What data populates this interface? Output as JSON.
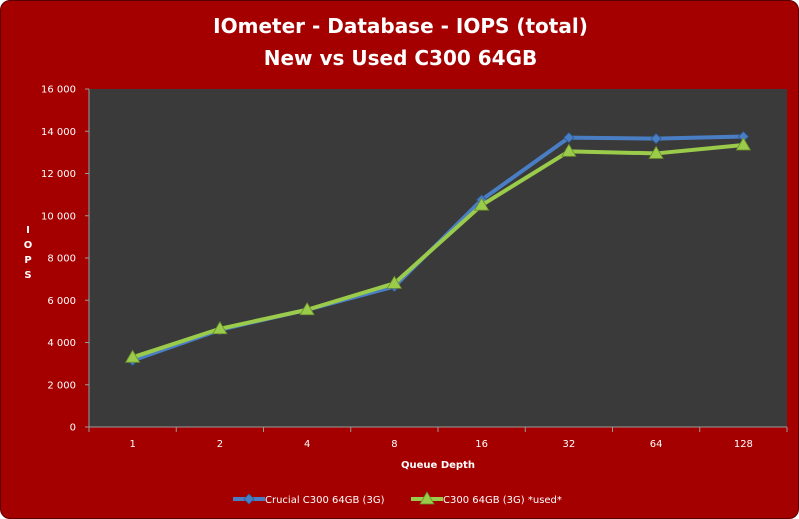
{
  "chart_data": {
    "type": "line",
    "title": "IOmeter - Database - IOPS (total)",
    "subtitle": "New vs Used C300 64GB",
    "xlabel": "Queue Depth",
    "ylabel": "I O P S",
    "categories": [
      "1",
      "2",
      "4",
      "8",
      "16",
      "32",
      "64",
      "128"
    ],
    "ylim": [
      0,
      16000
    ],
    "yticks": [
      0,
      2000,
      4000,
      6000,
      8000,
      10000,
      12000,
      14000,
      16000
    ],
    "ytick_labels": [
      "0",
      "2 000",
      "4 000",
      "6 000",
      "8 000",
      "10 000",
      "12 000",
      "14 000",
      "16 000"
    ],
    "grid": false,
    "legend_position": "bottom",
    "series": [
      {
        "name": "Crucial C300 64GB (3G)",
        "color": "#4a7ec4",
        "marker": "diamond",
        "values": [
          3150,
          4600,
          5550,
          6650,
          10750,
          13700,
          13650,
          13750
        ]
      },
      {
        "name": "C300 64GB (3G) *used*",
        "color": "#9acb4a",
        "marker": "triangle",
        "values": [
          3300,
          4650,
          5550,
          6800,
          10500,
          13050,
          12950,
          13350
        ]
      }
    ],
    "colors": {
      "frame": "#a50000",
      "plot_area": "#3a3a3a",
      "text": "#ffffff"
    }
  }
}
